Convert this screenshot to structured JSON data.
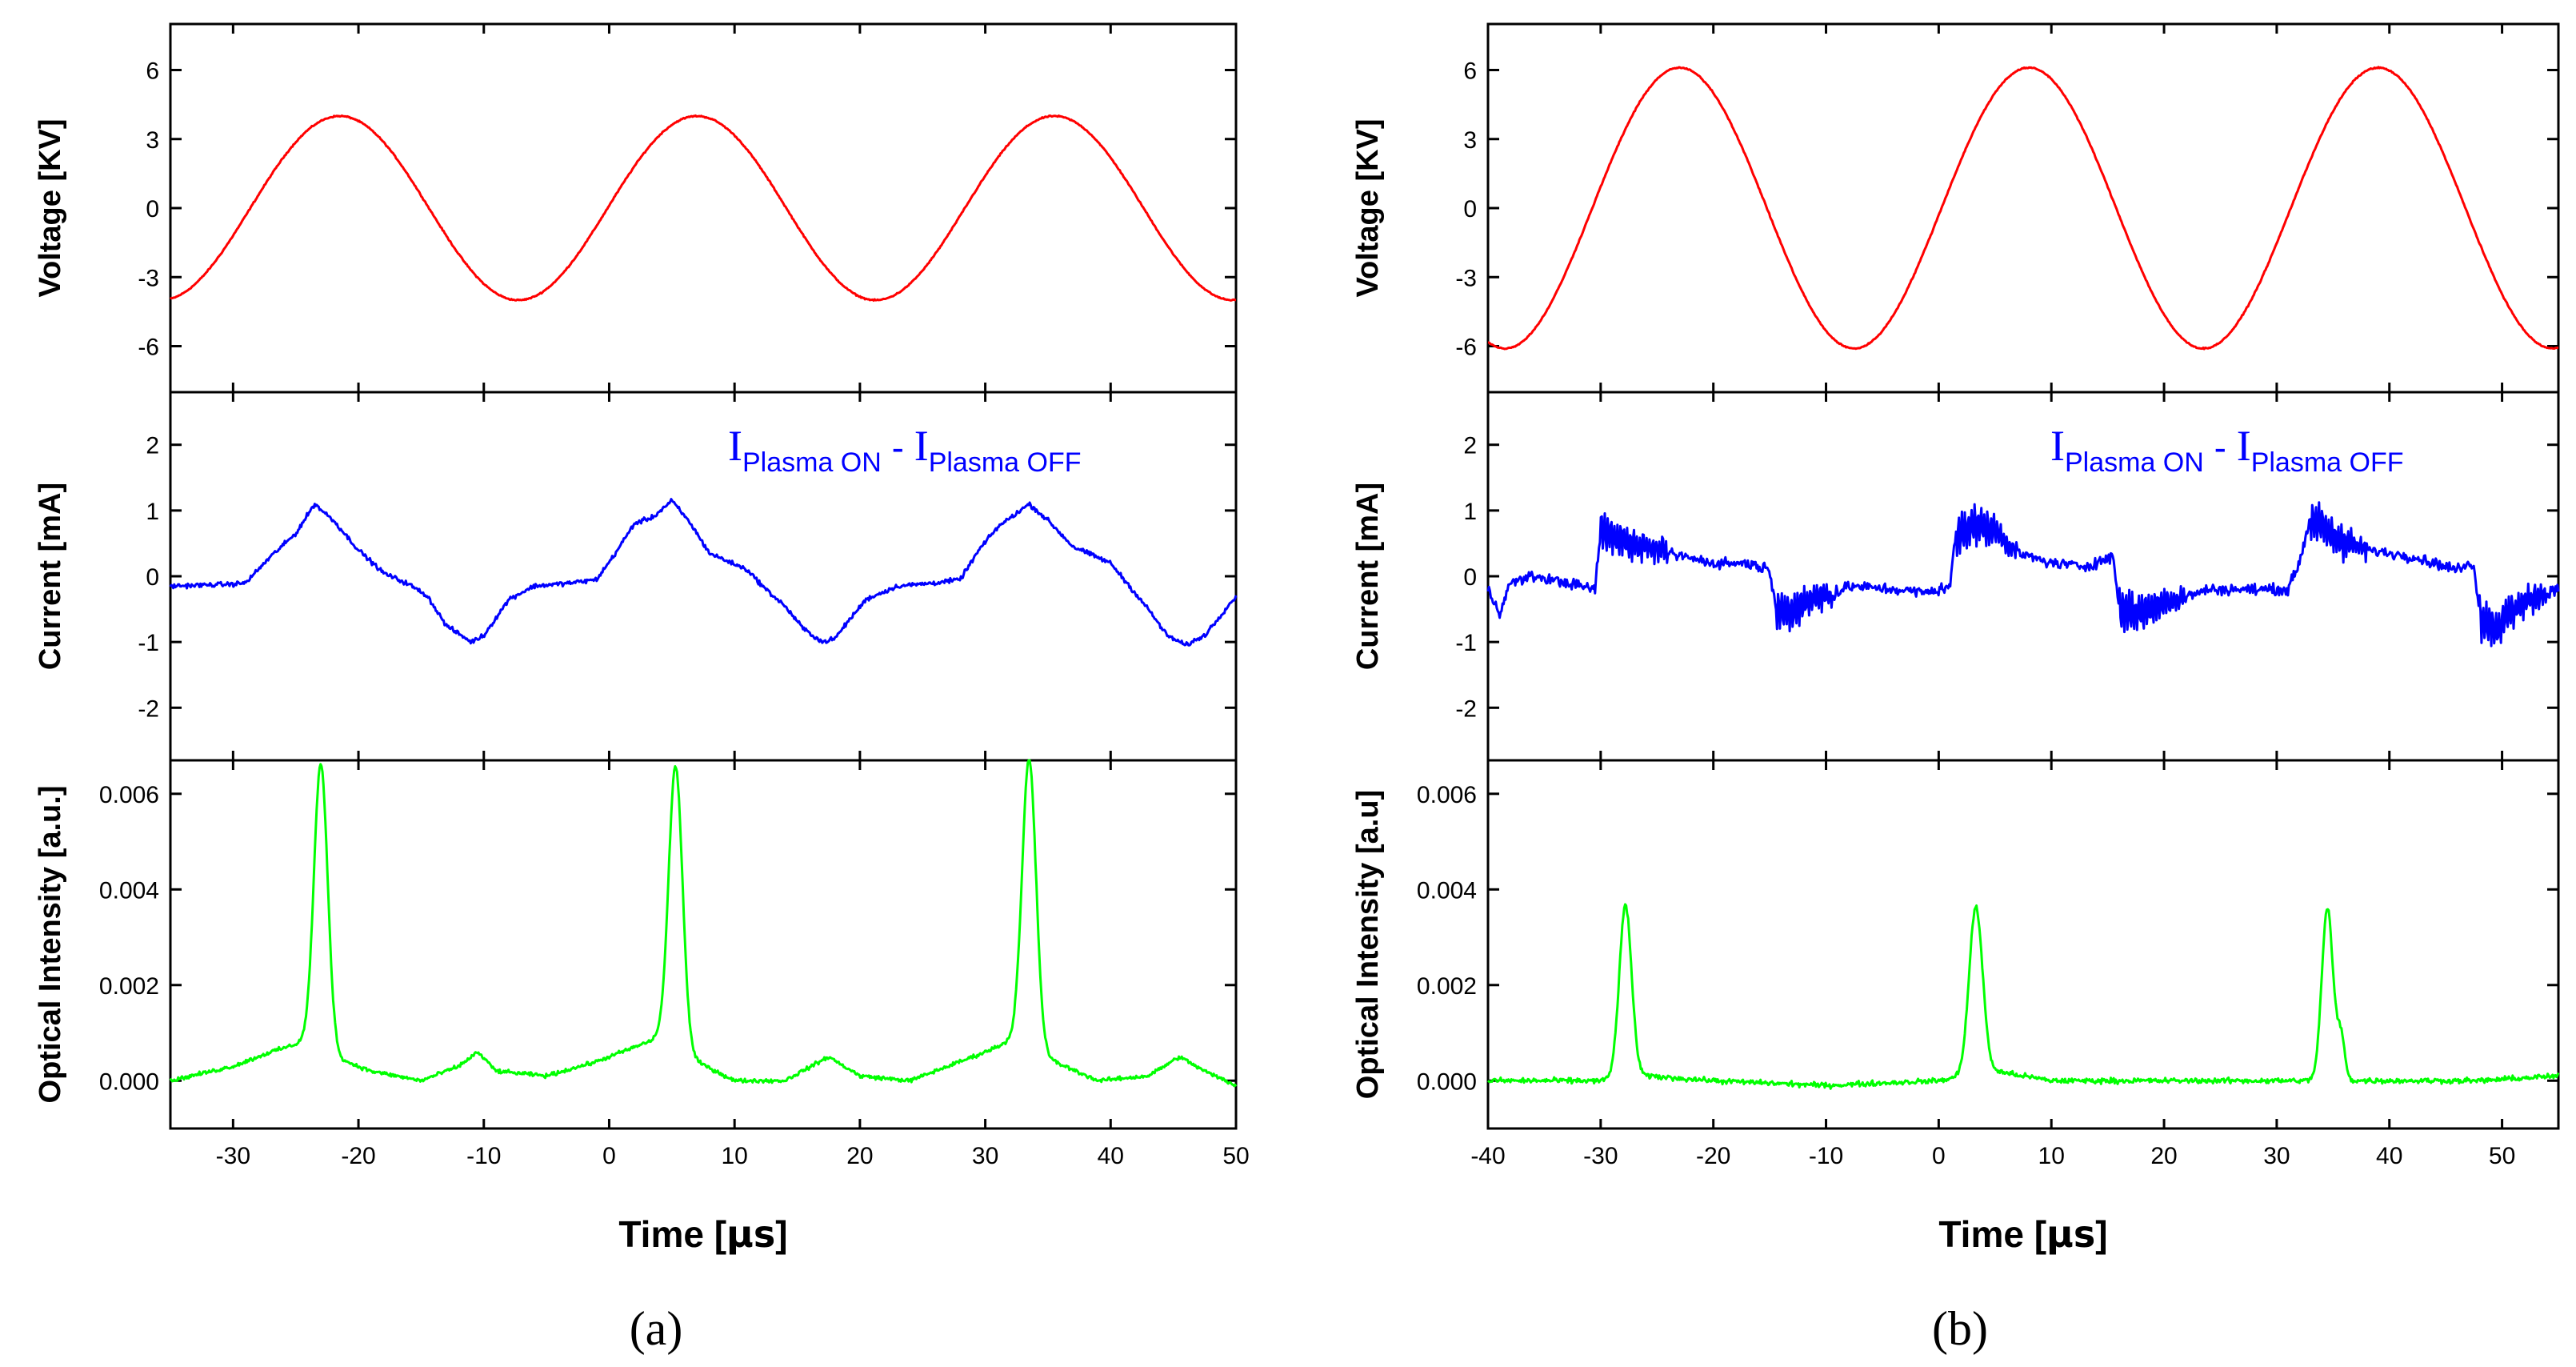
{
  "chart_data": [
    {
      "id": "a",
      "panel_label": "(a)",
      "type": "line",
      "xlabel": "Time [",
      "xlabel_unit": "μs",
      "xlabel_close": "]",
      "xlim": [
        -35,
        50
      ],
      "xticks": [
        -30,
        -20,
        -10,
        0,
        10,
        20,
        30,
        40,
        50
      ],
      "xtick_labels": [
        "-30",
        "-20",
        "-10",
        "0",
        "10",
        "20",
        "30",
        "40",
        "50"
      ],
      "subplots": [
        {
          "key": "voltage",
          "ylabel": "Voltage [KV]",
          "ylim": [
            -8,
            8
          ],
          "yticks": [
            6,
            3,
            0,
            -3,
            -6
          ],
          "ytick_labels": [
            "6",
            "3",
            "0",
            "-3",
            "-6"
          ],
          "color": "#ff0000",
          "kind": "sine",
          "amplitude": 4.0,
          "period": 28.5,
          "peak_at": 7.0,
          "noise": 0.04
        },
        {
          "key": "current",
          "ylabel": "Current [mA]",
          "ylim": [
            -2.8,
            2.8
          ],
          "yticks": [
            2,
            1,
            0,
            -1,
            -2
          ],
          "ytick_labels": [
            "2",
            "1",
            "0",
            "-1",
            "-2"
          ],
          "color": "#0000ff",
          "kind": "trace",
          "noise": 0.05,
          "points": [
            [
              -35,
              -0.15
            ],
            [
              -30,
              -0.12
            ],
            [
              -29,
              -0.1
            ],
            [
              -27,
              0.3
            ],
            [
              -25,
              0.65
            ],
            [
              -23.5,
              1.1
            ],
            [
              -22,
              0.85
            ],
            [
              -20,
              0.4
            ],
            [
              -18,
              0.05
            ],
            [
              -16,
              -0.12
            ],
            [
              -14.5,
              -0.3
            ],
            [
              -13,
              -0.75
            ],
            [
              -11,
              -1.0
            ],
            [
              -10,
              -0.9
            ],
            [
              -8,
              -0.35
            ],
            [
              -6,
              -0.15
            ],
            [
              -3,
              -0.1
            ],
            [
              -1,
              -0.05
            ],
            [
              0.5,
              0.35
            ],
            [
              2,
              0.8
            ],
            [
              3.5,
              0.9
            ],
            [
              5,
              1.15
            ],
            [
              6.5,
              0.8
            ],
            [
              8,
              0.35
            ],
            [
              11,
              0.1
            ],
            [
              12.5,
              -0.2
            ],
            [
              14,
              -0.45
            ],
            [
              15.5,
              -0.8
            ],
            [
              17,
              -1.0
            ],
            [
              18,
              -0.95
            ],
            [
              19,
              -0.7
            ],
            [
              20.5,
              -0.35
            ],
            [
              23,
              -0.15
            ],
            [
              26,
              -0.1
            ],
            [
              28,
              -0.05
            ],
            [
              29.5,
              0.4
            ],
            [
              31,
              0.75
            ],
            [
              33.5,
              1.1
            ],
            [
              35,
              0.85
            ],
            [
              37,
              0.45
            ],
            [
              40,
              0.2
            ],
            [
              41.5,
              -0.15
            ],
            [
              43,
              -0.5
            ],
            [
              44.5,
              -0.9
            ],
            [
              46,
              -1.05
            ],
            [
              47.5,
              -0.9
            ],
            [
              50,
              -0.3
            ]
          ]
        },
        {
          "key": "optical",
          "ylabel": "Optical Intensity [a.u.]",
          "ylim": [
            -0.001,
            0.0067
          ],
          "yticks": [
            0.006,
            0.004,
            0.002,
            0.0
          ],
          "ytick_labels": [
            "0.006",
            "0.004",
            "0.002",
            "0.000"
          ],
          "color": "#00ff00",
          "kind": "peaks",
          "noise": 6e-05,
          "peaks": [
            {
              "center": -23,
              "height": 0.006,
              "width": 0.55
            },
            {
              "center": 5.3,
              "height": 0.0059,
              "width": 0.55
            },
            {
              "center": 33.5,
              "height": 0.006,
              "width": 0.55
            }
          ],
          "baseline_points": [
            [
              -35,
              0.0
            ],
            [
              -30,
              0.0003
            ],
            [
              -27,
              0.0006
            ],
            [
              -24.5,
              0.0008
            ],
            [
              -22,
              0.0005
            ],
            [
              -19,
              0.0002
            ],
            [
              -15,
              0.0
            ],
            [
              -12,
              0.0003
            ],
            [
              -10.5,
              0.0006
            ],
            [
              -9,
              0.0002
            ],
            [
              -5,
              0.0001
            ],
            [
              -1,
              0.0004
            ],
            [
              1,
              0.0006
            ],
            [
              4,
              0.0009
            ],
            [
              7,
              0.0004
            ],
            [
              10,
              0.0
            ],
            [
              14,
              0.0
            ],
            [
              17.5,
              0.0005
            ],
            [
              20,
              0.0001
            ],
            [
              24,
              0.0
            ],
            [
              27,
              0.0003
            ],
            [
              30,
              0.0006
            ],
            [
              32.5,
              0.0009
            ],
            [
              35.5,
              0.0004
            ],
            [
              39,
              0.0
            ],
            [
              43,
              0.0001
            ],
            [
              45.5,
              0.0005
            ],
            [
              47.5,
              0.0002
            ],
            [
              50,
              -0.0001
            ]
          ]
        }
      ],
      "annotation": {
        "I": "I",
        "sub1": "Plasma ON",
        "dash": " - ",
        "I2": "I",
        "sub2": "Plasma OFF"
      }
    },
    {
      "id": "b",
      "panel_label": "(b)",
      "type": "line",
      "xlabel": "Time [",
      "xlabel_unit": "μs",
      "xlabel_close": "]",
      "xlim": [
        -40,
        55
      ],
      "xticks": [
        -40,
        -30,
        -20,
        -10,
        0,
        10,
        20,
        30,
        40,
        50
      ],
      "xtick_labels": [
        "-40",
        "-30",
        "-20",
        "-10",
        "0",
        "10",
        "20",
        "30",
        "40",
        "50"
      ],
      "subplots": [
        {
          "key": "voltage",
          "ylabel": "Voltage [KV]",
          "ylim": [
            -8,
            8
          ],
          "yticks": [
            6,
            3,
            0,
            -3,
            -6
          ],
          "ytick_labels": [
            "6",
            "3",
            "0",
            "-3",
            "-6"
          ],
          "color": "#ff0000",
          "kind": "sine",
          "amplitude": 6.1,
          "period": 31.0,
          "peak_at": 8.0,
          "noise": 0.04
        },
        {
          "key": "current",
          "ylabel": "Current [mA]",
          "ylim": [
            -2.8,
            2.8
          ],
          "yticks": [
            2,
            1,
            0,
            -1,
            -2
          ],
          "ytick_labels": [
            "2",
            "1",
            "0",
            "-1",
            "-2"
          ],
          "color": "#0000ff",
          "kind": "trace",
          "noise": 0.12,
          "points": [
            [
              -40,
              -0.2
            ],
            [
              -39,
              -0.55
            ],
            [
              -38,
              -0.1
            ],
            [
              -36,
              0.0
            ],
            [
              -33,
              -0.1
            ],
            [
              -30.5,
              -0.2
            ],
            [
              -30,
              0.7
            ],
            [
              -28,
              0.55
            ],
            [
              -26,
              0.45
            ],
            [
              -24,
              0.35
            ],
            [
              -20,
              0.2
            ],
            [
              -17,
              0.2
            ],
            [
              -15,
              0.1
            ],
            [
              -14.5,
              -0.4
            ],
            [
              -13.5,
              -0.6
            ],
            [
              -11,
              -0.3
            ],
            [
              -9.5,
              -0.3
            ],
            [
              -8,
              -0.15
            ],
            [
              -4,
              -0.2
            ],
            [
              -1,
              -0.25
            ],
            [
              1,
              -0.15
            ],
            [
              1.5,
              0.6
            ],
            [
              3,
              0.8
            ],
            [
              5,
              0.7
            ],
            [
              7,
              0.35
            ],
            [
              10,
              0.2
            ],
            [
              13,
              0.15
            ],
            [
              15.5,
              0.3
            ],
            [
              16,
              -0.5
            ],
            [
              18,
              -0.55
            ],
            [
              20,
              -0.4
            ],
            [
              22,
              -0.3
            ],
            [
              24,
              -0.2
            ],
            [
              28,
              -0.2
            ],
            [
              31,
              -0.2
            ],
            [
              32,
              0.2
            ],
            [
              33,
              0.9
            ],
            [
              35,
              0.6
            ],
            [
              38,
              0.4
            ],
            [
              42,
              0.3
            ],
            [
              46,
              0.1
            ],
            [
              47.5,
              0.2
            ],
            [
              48,
              -0.6
            ],
            [
              49.5,
              -0.8
            ],
            [
              51,
              -0.5
            ],
            [
              53,
              -0.3
            ],
            [
              55,
              -0.2
            ]
          ],
          "burst_regions": [
            [
              -30,
              -24
            ],
            [
              -14.5,
              -9
            ],
            [
              1.5,
              7
            ],
            [
              16,
              22
            ],
            [
              33,
              38
            ],
            [
              48,
              54
            ]
          ]
        },
        {
          "key": "optical",
          "ylabel": "Optical Intensity [a.u]",
          "ylim": [
            -0.001,
            0.0067
          ],
          "yticks": [
            0.006,
            0.004,
            0.002,
            0.0
          ],
          "ytick_labels": [
            "0.006",
            "0.004",
            "0.002",
            "0.000"
          ],
          "color": "#00ff00",
          "kind": "peaks",
          "noise": 8e-05,
          "peaks": [
            {
              "center": -27.8,
              "height": 0.0036,
              "width": 0.55
            },
            {
              "center": 3.3,
              "height": 0.0035,
              "width": 0.6
            },
            {
              "center": 34.5,
              "height": 0.0036,
              "width": 0.5
            },
            {
              "center": 35.7,
              "height": 0.0009,
              "width": 0.35
            }
          ],
          "baseline_points": [
            [
              -40,
              0.0
            ],
            [
              -30,
              0.0
            ],
            [
              -26,
              0.0001
            ],
            [
              -20,
              0.0
            ],
            [
              -10,
              -0.0001
            ],
            [
              0,
              0.0
            ],
            [
              5,
              0.0002
            ],
            [
              10,
              0.0
            ],
            [
              20,
              0.0
            ],
            [
              30,
              0.0
            ],
            [
              40,
              0.0
            ],
            [
              48,
              0.0
            ],
            [
              55,
              0.0001
            ]
          ]
        }
      ],
      "annotation": {
        "I": "I",
        "sub1": "Plasma ON",
        "dash": " - ",
        "I2": "I",
        "sub2": "Plasma OFF"
      }
    }
  ]
}
